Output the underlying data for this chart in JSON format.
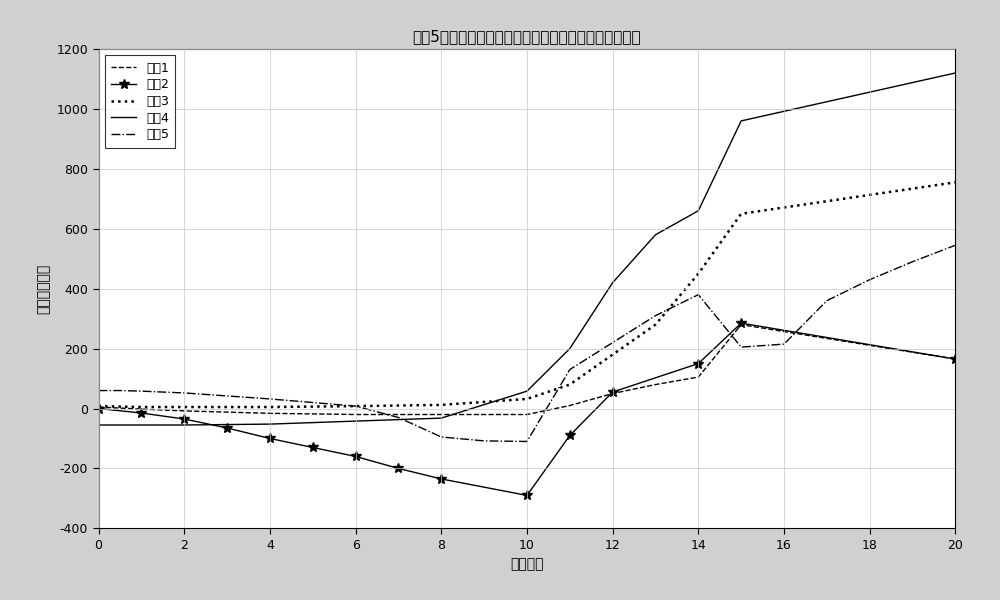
{
  "title": "选取5个不同像元点在不同积分时间下偏置定标系数曲线",
  "xlabel": "积分时间",
  "ylabel": "偏置定标系数",
  "xlim": [
    0,
    20
  ],
  "ylim": [
    -400,
    1200
  ],
  "xticks": [
    0,
    2,
    4,
    6,
    8,
    10,
    12,
    14,
    16,
    18,
    20
  ],
  "yticks": [
    -400,
    -200,
    0,
    200,
    400,
    600,
    800,
    1000,
    1200
  ],
  "series": [
    {
      "label": "像元1",
      "x": [
        0,
        1,
        2,
        3,
        4,
        5,
        6,
        7,
        8,
        10,
        11,
        12,
        13,
        14,
        15,
        20
      ],
      "y": [
        5,
        -2,
        -8,
        -12,
        -16,
        -18,
        -20,
        -20,
        -20,
        -20,
        10,
        50,
        80,
        105,
        280,
        165
      ],
      "color": "black",
      "linestyle": "--",
      "linewidth": 1.0,
      "marker": null
    },
    {
      "label": "像元2",
      "x": [
        0,
        1,
        2,
        3,
        4,
        5,
        6,
        7,
        8,
        10,
        11,
        12,
        14,
        15,
        20
      ],
      "y": [
        0,
        -15,
        -35,
        -65,
        -100,
        -130,
        -160,
        -200,
        -235,
        -290,
        -90,
        55,
        150,
        285,
        165
      ],
      "color": "black",
      "linestyle": "-",
      "linewidth": 1.0,
      "marker": "*",
      "markersize": 7
    },
    {
      "label": "像元3",
      "x": [
        0,
        1,
        2,
        4,
        6,
        8,
        10,
        11,
        12,
        13,
        14,
        15,
        20
      ],
      "y": [
        8,
        5,
        5,
        5,
        8,
        12,
        32,
        80,
        180,
        280,
        450,
        650,
        755
      ],
      "color": "black",
      "linestyle": ":",
      "linewidth": 1.8,
      "marker": null
    },
    {
      "label": "像元4",
      "x": [
        0,
        1,
        2,
        4,
        6,
        8,
        10,
        11,
        12,
        13,
        14,
        15,
        20
      ],
      "y": [
        -55,
        -55,
        -55,
        -52,
        -42,
        -32,
        58,
        200,
        420,
        580,
        660,
        960,
        1120
      ],
      "color": "black",
      "linestyle": "-",
      "linewidth": 1.0,
      "marker": null
    },
    {
      "label": "像元5",
      "x": [
        0,
        0.5,
        1,
        2,
        3,
        4,
        5,
        6,
        7,
        8,
        9,
        10,
        11,
        12,
        13,
        14,
        15,
        16,
        17,
        18,
        19,
        20
      ],
      "y": [
        60,
        60,
        58,
        52,
        42,
        32,
        20,
        8,
        -30,
        -95,
        -108,
        -110,
        130,
        220,
        310,
        380,
        205,
        215,
        360,
        430,
        490,
        545
      ],
      "color": "black",
      "linestyle": "-.",
      "linewidth": 1.0,
      "marker": null
    }
  ],
  "background_color": "#d0d0d0",
  "plot_background_color": "#ffffff",
  "legend_loc": "upper left",
  "grid": true,
  "grid_color": "#c8c8c8",
  "font_size": 10,
  "title_font_size": 11
}
